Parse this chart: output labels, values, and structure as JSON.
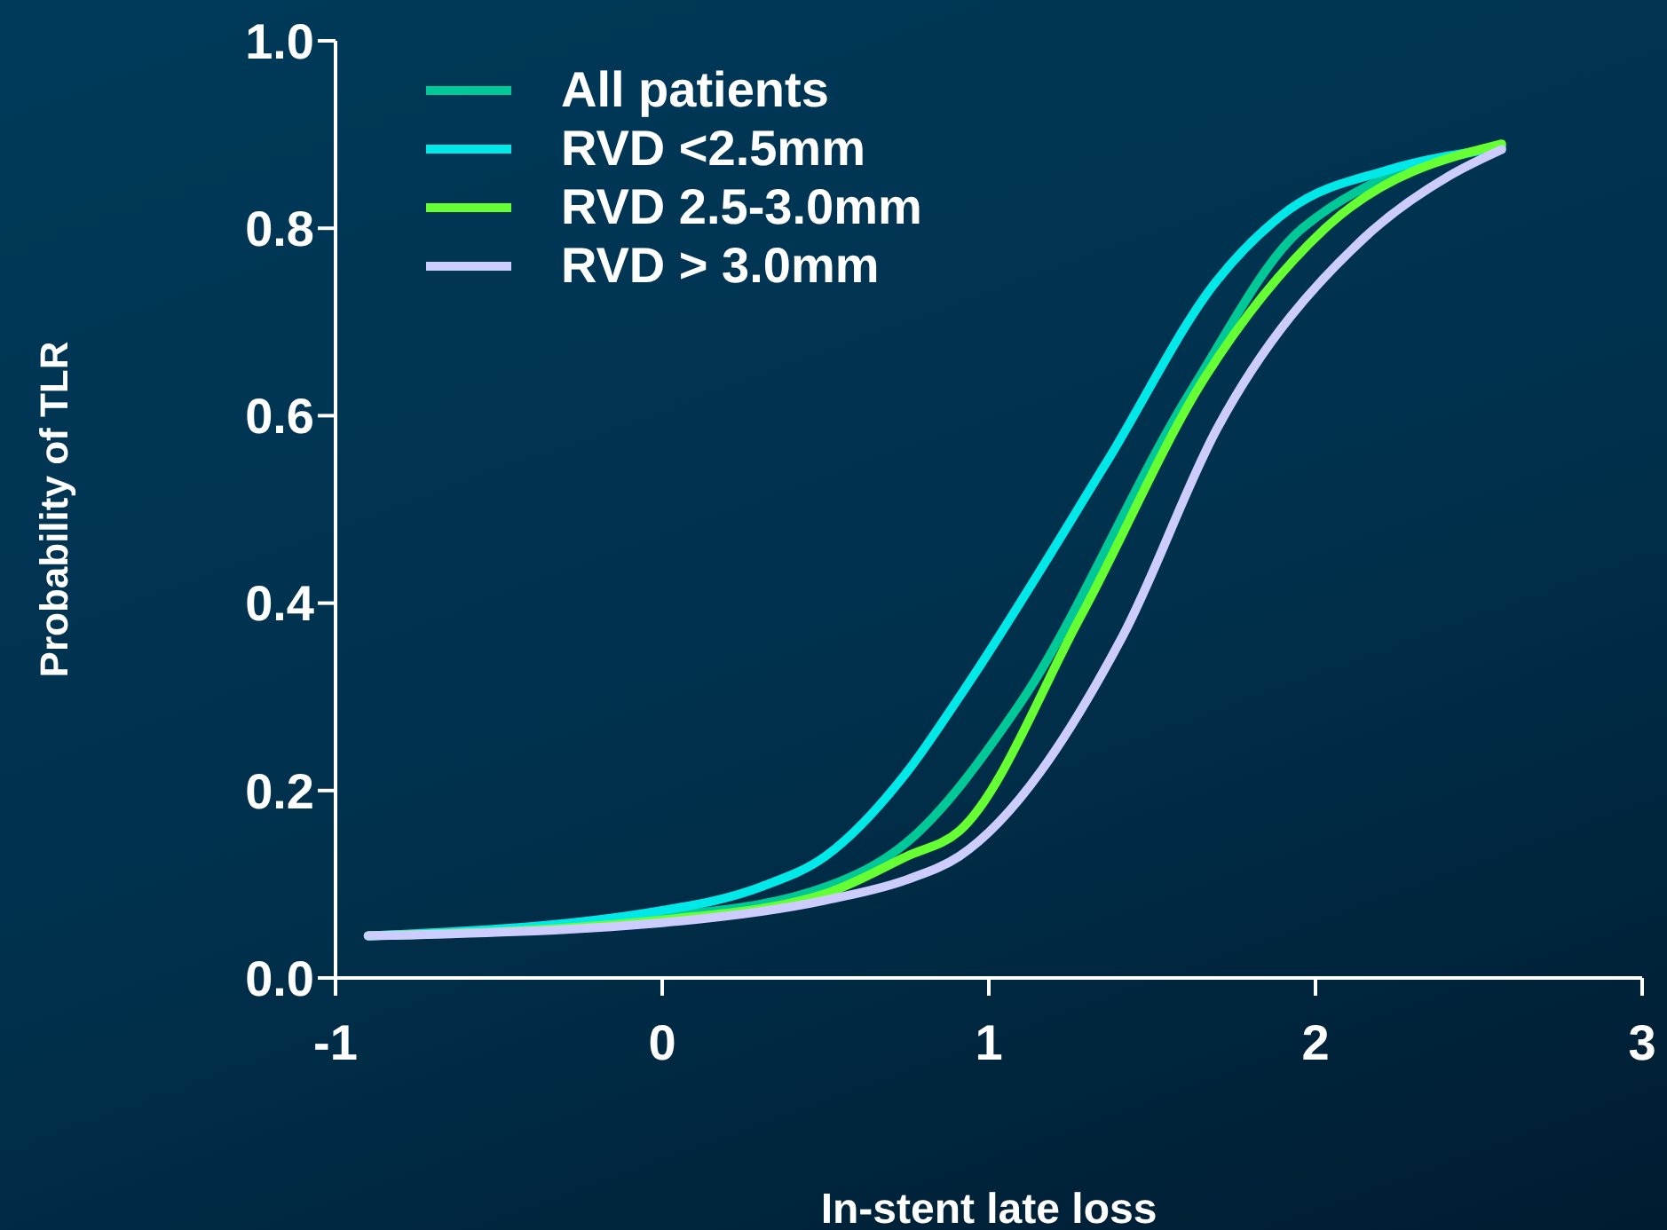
{
  "chart_data": {
    "type": "line",
    "xlabel": "In-stent late loss",
    "ylabel": "Probability of TLR",
    "xlim": [
      -1,
      3
    ],
    "xticks": [
      -1,
      0,
      1,
      2,
      3
    ],
    "ylim": [
      0,
      1
    ],
    "yticks": [
      {
        "value": 0,
        "label": "0.0"
      },
      0.2,
      0.4,
      0.6,
      0.8,
      {
        "value": 1,
        "label": "1.0"
      }
    ],
    "grid": false,
    "legend": "top left",
    "marker": "none",
    "line_style": "solid",
    "series": [
      {
        "name": "All patients",
        "color": "#00c896",
        "x": [
          -0.9,
          0,
          0.5,
          0.75,
          1.09,
          1.62,
          1.96,
          2.57
        ],
        "values": [
          0.045,
          0.065,
          0.097,
          0.145,
          0.29,
          0.627,
          0.8,
          0.888
        ]
      },
      {
        "name": "RVD <2.5mm",
        "color": "#00e8e8",
        "x": [
          -0.9,
          0,
          0.3,
          0.5,
          0.75,
          0.91,
          1.36,
          1.7,
          1.92,
          2.22,
          2.57
        ],
        "values": [
          0.045,
          0.072,
          0.097,
          0.13,
          0.22,
          0.3,
          0.55,
          0.745,
          0.82,
          0.862,
          0.886
        ]
      },
      {
        "name": "RVD 2.5-3.0mm",
        "color": "#66ff33",
        "x": [
          -0.9,
          0,
          0.5,
          0.75,
          0.91,
          1.28,
          1.66,
          2.03,
          2.57
        ],
        "values": [
          0.045,
          0.062,
          0.09,
          0.13,
          0.157,
          0.385,
          0.64,
          0.8,
          0.89
        ]
      },
      {
        "name": "RVD > 3.0mm",
        "color": "#ccccff",
        "x": [
          -0.9,
          0,
          0.5,
          0.75,
          0.91,
          1.41,
          1.7,
          2.15,
          2.41,
          2.57
        ],
        "values": [
          0.045,
          0.059,
          0.083,
          0.105,
          0.13,
          0.365,
          0.587,
          0.79,
          0.856,
          0.884
        ]
      }
    ]
  }
}
